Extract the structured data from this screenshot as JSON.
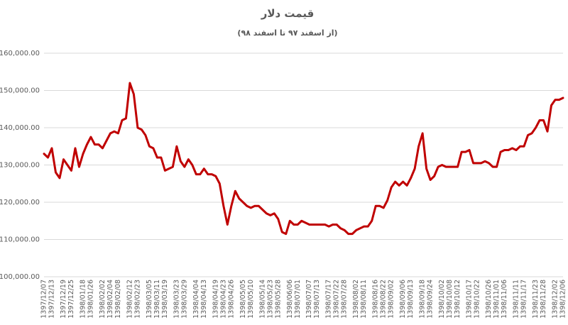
{
  "chart_data": {
    "type": "line",
    "title": "قیمت دلار",
    "subtitle": "(از اسفند ۹۷ تا اسفند ۹۸)",
    "color": "#c00000",
    "grid": true,
    "ylim": [
      100000,
      160000
    ],
    "yticks": [
      {
        "value": 100000,
        "label": "100,000.00"
      },
      {
        "value": 110000,
        "label": "110,000.00"
      },
      {
        "value": 120000,
        "label": "120,000.00"
      },
      {
        "value": 130000,
        "label": "130,000.00"
      },
      {
        "value": 140000,
        "label": "140,000.00"
      },
      {
        "value": 150000,
        "label": "150,000.00"
      },
      {
        "value": 160000,
        "label": "160,000.00"
      }
    ],
    "categories": [
      "1397/12/07",
      null,
      "1397/12/13",
      null,
      null,
      "1397/12/19",
      null,
      "1397/12/25",
      null,
      null,
      "1398/01/18",
      null,
      "1398/01/26",
      null,
      null,
      "1398/02/02",
      null,
      "1398/02/04",
      null,
      "1398/02/08",
      null,
      null,
      "1398/02/12",
      null,
      "1398/02/23",
      null,
      null,
      "1398/03/05",
      null,
      "1398/03/11",
      null,
      "1398/03/19",
      null,
      null,
      "1398/03/23",
      null,
      "1398/03/29",
      null,
      null,
      "1398/04/04",
      null,
      "1398/04/13",
      null,
      null,
      "1398/04/19",
      null,
      "1398/04/23",
      null,
      "1398/04/26",
      null,
      null,
      "1398/05/05",
      null,
      "1398/05/10",
      null,
      null,
      "1398/05/14",
      null,
      "1398/05/23",
      null,
      "1398/05/28",
      null,
      null,
      "1398/06/06",
      null,
      "1398/07/01",
      null,
      null,
      "1398/07/07",
      null,
      "1398/07/13",
      null,
      null,
      "1398/07/17",
      null,
      "1398/07/22",
      null,
      "1398/07/28",
      null,
      null,
      "1398/08/02",
      null,
      "1398/08/11",
      null,
      null,
      "1398/08/16",
      null,
      "1398/08/22",
      null,
      "1398/09/02",
      null,
      null,
      "1398/09/06",
      null,
      "1398/09/13",
      null,
      null,
      "1398/09/18",
      null,
      "1398/09/24",
      null,
      null,
      "1398/10/02",
      null,
      "1398/10/08",
      null,
      "1398/10/12",
      null,
      null,
      "1398/10/17",
      null,
      "1398/10/22",
      null,
      null,
      "1398/10/26",
      null,
      "1398/11/01",
      null,
      "1398/11/06",
      null,
      null,
      "1398/11/11",
      null,
      "1398/11/17",
      null,
      null,
      "1398/11/23",
      null,
      "1398/11/28",
      null,
      null,
      "1398/12/02",
      null,
      "1398/12/06"
    ],
    "values": [
      133000,
      132000,
      134500,
      128000,
      126500,
      131500,
      130000,
      128500,
      134500,
      129500,
      133000,
      135500,
      137500,
      135500,
      135500,
      134500,
      136500,
      138500,
      139000,
      138500,
      142000,
      142500,
      152000,
      149000,
      140000,
      139500,
      138000,
      135000,
      134500,
      132000,
      132000,
      128500,
      129000,
      129500,
      135000,
      131000,
      129500,
      131500,
      130000,
      127500,
      127500,
      129000,
      127500,
      127500,
      127000,
      125000,
      119000,
      114000,
      119000,
      123000,
      121000,
      120000,
      119000,
      118500,
      119000,
      119000,
      118000,
      117000,
      116500,
      117000,
      115500,
      112000,
      111500,
      115000,
      114000,
      114000,
      115000,
      114500,
      114000,
      114000,
      114000,
      114000,
      114000,
      113500,
      114000,
      114000,
      113000,
      112500,
      111500,
      111500,
      112500,
      113000,
      113500,
      113500,
      115000,
      119000,
      119000,
      118500,
      120500,
      124000,
      125500,
      124500,
      125500,
      124500,
      126500,
      129000,
      135000,
      138500,
      129000,
      126000,
      127000,
      129500,
      130000,
      129500,
      129500,
      129500,
      129500,
      133500,
      133500,
      134000,
      130500,
      130500,
      130500,
      131000,
      130500,
      129500,
      129500,
      133500,
      134000,
      134000,
      134500,
      134000,
      135000,
      135000,
      138000,
      138500,
      140000,
      142000,
      142000,
      139000,
      146000,
      147500,
      147500,
      148000
    ]
  }
}
